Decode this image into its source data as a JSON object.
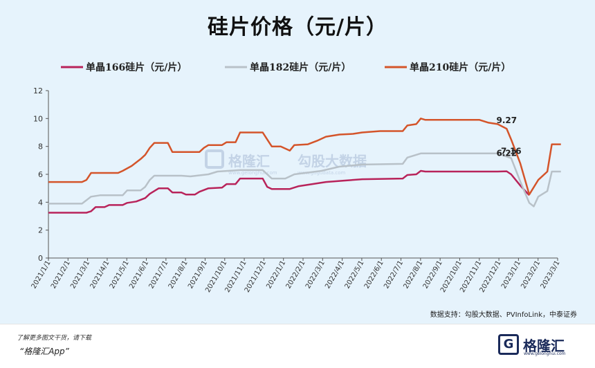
{
  "chart_data": {
    "type": "line",
    "title": "硅片价格（元/片）",
    "ylim": [
      0,
      12
    ],
    "yticks": [
      0,
      2,
      4,
      6,
      8,
      10,
      12
    ],
    "x_tick_labels": [
      "2021/1/1",
      "2021/2/1",
      "2021/3/1",
      "2021/4/1",
      "2021/5/1",
      "2021/6/1",
      "2021/7/1",
      "2021/8/1",
      "2021/9/1",
      "2021/10/1",
      "2021/11/1",
      "2021/12/1",
      "2022/1/1",
      "2022/2/1",
      "2022/3/1",
      "2022/4/1",
      "2022/5/1",
      "2022/6/1",
      "2022/7/1",
      "2022/8/1",
      "2022/9/1",
      "2022/10/1",
      "2022/11/1",
      "2022/12/1",
      "2023/1/1",
      "2023/2/1",
      "2023/3/1"
    ],
    "legend_position": "top",
    "grid": false,
    "series": [
      {
        "name": "单晶166硅片（元/片）",
        "color": "#b8235a",
        "points": [
          [
            "2021-01-01",
            3.25
          ],
          [
            "2021-03-01",
            3.25
          ],
          [
            "2021-03-08",
            3.35
          ],
          [
            "2021-03-15",
            3.65
          ],
          [
            "2021-03-29",
            3.65
          ],
          [
            "2021-04-05",
            3.8
          ],
          [
            "2021-04-26",
            3.8
          ],
          [
            "2021-05-03",
            3.95
          ],
          [
            "2021-05-17",
            4.05
          ],
          [
            "2021-05-31",
            4.3
          ],
          [
            "2021-06-07",
            4.6
          ],
          [
            "2021-06-14",
            4.8
          ],
          [
            "2021-06-21",
            5.0
          ],
          [
            "2021-07-05",
            5.0
          ],
          [
            "2021-07-12",
            4.7
          ],
          [
            "2021-07-26",
            4.7
          ],
          [
            "2021-08-02",
            4.55
          ],
          [
            "2021-08-16",
            4.55
          ],
          [
            "2021-08-23",
            4.75
          ],
          [
            "2021-09-06",
            5.0
          ],
          [
            "2021-09-27",
            5.05
          ],
          [
            "2021-10-04",
            5.3
          ],
          [
            "2021-10-18",
            5.3
          ],
          [
            "2021-10-25",
            5.7
          ],
          [
            "2021-11-29",
            5.7
          ],
          [
            "2021-12-06",
            5.1
          ],
          [
            "2021-12-13",
            4.95
          ],
          [
            "2022-01-10",
            4.95
          ],
          [
            "2022-01-24",
            5.15
          ],
          [
            "2022-02-14",
            5.3
          ],
          [
            "2022-03-07",
            5.45
          ],
          [
            "2022-04-04",
            5.55
          ],
          [
            "2022-05-02",
            5.65
          ],
          [
            "2022-07-04",
            5.7
          ],
          [
            "2022-07-11",
            5.95
          ],
          [
            "2022-07-25",
            6.0
          ],
          [
            "2022-08-01",
            6.25
          ],
          [
            "2022-08-08",
            6.2
          ],
          [
            "2022-11-28",
            6.2
          ],
          [
            "2022-12-12",
            6.22
          ],
          [
            "2022-12-19",
            6.0
          ],
          [
            "2023-01-02",
            5.2
          ],
          [
            "2023-01-16",
            4.5
          ]
        ]
      },
      {
        "name": "单晶182硅片（元/片）",
        "color": "#b8c1c8",
        "points": [
          [
            "2021-01-01",
            3.9
          ],
          [
            "2021-02-22",
            3.9
          ],
          [
            "2021-03-08",
            4.4
          ],
          [
            "2021-03-22",
            4.5
          ],
          [
            "2021-04-26",
            4.5
          ],
          [
            "2021-05-03",
            4.85
          ],
          [
            "2021-05-24",
            4.85
          ],
          [
            "2021-05-31",
            5.1
          ],
          [
            "2021-06-07",
            5.6
          ],
          [
            "2021-06-14",
            5.9
          ],
          [
            "2021-07-26",
            5.9
          ],
          [
            "2021-08-09",
            5.85
          ],
          [
            "2021-09-06",
            6.0
          ],
          [
            "2021-09-20",
            6.2
          ],
          [
            "2021-10-25",
            6.3
          ],
          [
            "2021-11-29",
            6.3
          ],
          [
            "2021-12-13",
            5.7
          ],
          [
            "2022-01-03",
            5.7
          ],
          [
            "2022-01-17",
            6.0
          ],
          [
            "2022-02-28",
            6.25
          ],
          [
            "2022-03-28",
            6.55
          ],
          [
            "2022-05-02",
            6.7
          ],
          [
            "2022-07-04",
            6.75
          ],
          [
            "2022-07-11",
            7.2
          ],
          [
            "2022-08-01",
            7.5
          ],
          [
            "2022-11-28",
            7.5
          ],
          [
            "2022-12-19",
            7.16
          ],
          [
            "2023-01-02",
            5.5
          ],
          [
            "2023-01-16",
            3.95
          ],
          [
            "2023-01-23",
            3.7
          ],
          [
            "2023-01-30",
            4.4
          ],
          [
            "2023-02-13",
            4.8
          ],
          [
            "2023-02-20",
            6.2
          ],
          [
            "2023-03-06",
            6.2
          ]
        ]
      },
      {
        "name": "单晶210硅片（元/片）",
        "color": "#d4542a",
        "points": [
          [
            "2021-01-01",
            5.45
          ],
          [
            "2021-02-22",
            5.45
          ],
          [
            "2021-03-01",
            5.6
          ],
          [
            "2021-03-08",
            6.1
          ],
          [
            "2021-04-19",
            6.1
          ],
          [
            "2021-04-26",
            6.25
          ],
          [
            "2021-05-10",
            6.6
          ],
          [
            "2021-05-24",
            7.1
          ],
          [
            "2021-05-31",
            7.4
          ],
          [
            "2021-06-07",
            7.9
          ],
          [
            "2021-06-14",
            8.25
          ],
          [
            "2021-07-05",
            8.25
          ],
          [
            "2021-07-12",
            7.6
          ],
          [
            "2021-08-23",
            7.6
          ],
          [
            "2021-08-30",
            7.9
          ],
          [
            "2021-09-06",
            8.1
          ],
          [
            "2021-09-27",
            8.1
          ],
          [
            "2021-10-04",
            8.3
          ],
          [
            "2021-10-18",
            8.3
          ],
          [
            "2021-10-25",
            9.0
          ],
          [
            "2021-11-29",
            9.0
          ],
          [
            "2021-12-06",
            8.5
          ],
          [
            "2021-12-13",
            8.0
          ],
          [
            "2021-12-27",
            8.0
          ],
          [
            "2022-01-10",
            7.7
          ],
          [
            "2022-01-17",
            8.1
          ],
          [
            "2022-02-07",
            8.15
          ],
          [
            "2022-02-21",
            8.4
          ],
          [
            "2022-03-07",
            8.7
          ],
          [
            "2022-03-28",
            8.85
          ],
          [
            "2022-04-18",
            8.9
          ],
          [
            "2022-05-02",
            9.0
          ],
          [
            "2022-05-30",
            9.1
          ],
          [
            "2022-07-04",
            9.1
          ],
          [
            "2022-07-11",
            9.5
          ],
          [
            "2022-07-25",
            9.6
          ],
          [
            "2022-08-01",
            10.0
          ],
          [
            "2022-08-08",
            9.9
          ],
          [
            "2022-10-31",
            9.9
          ],
          [
            "2022-11-14",
            9.7
          ],
          [
            "2022-11-28",
            9.6
          ],
          [
            "2022-12-12",
            9.27
          ],
          [
            "2022-12-19",
            8.5
          ],
          [
            "2023-01-02",
            6.8
          ],
          [
            "2023-01-16",
            4.55
          ],
          [
            "2023-01-30",
            5.6
          ],
          [
            "2023-02-13",
            6.2
          ],
          [
            "2023-02-20",
            8.15
          ],
          [
            "2023-03-06",
            8.15
          ]
        ]
      }
    ],
    "annotations": [
      {
        "text": "9.27",
        "x": "2022-12-12",
        "y": 9.27,
        "series": 2
      },
      {
        "text": "7.16",
        "x": "2022-12-19",
        "y": 7.16,
        "series": 1
      },
      {
        "text": "6.22",
        "x": "2022-12-12",
        "y": 6.22,
        "series": 0
      }
    ]
  },
  "watermark": {
    "brand": "格隆汇",
    "brand_url": "www.gelonghui.com",
    "partner": "勾股大数据",
    "partner_url": "www.gogudata.com"
  },
  "source": "数据支持：勾股大数据、PVInfoLink，中泰证券",
  "footer": {
    "note": "了解更多图文干货，请下载",
    "app": "“格隆汇App”",
    "logo_mark": "G",
    "logo_name": "格隆汇",
    "logo_url": "www.gelonghui.com"
  }
}
